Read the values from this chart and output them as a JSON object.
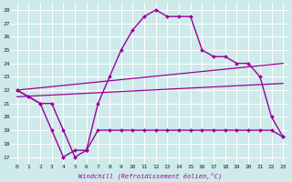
{
  "xlabel": "Windchill (Refroidissement éolien,°C)",
  "background_color": "#ceeaea",
  "grid_color": "#ffffff",
  "line_color": "#990099",
  "xlim": [
    -0.5,
    23.5
  ],
  "ylim": [
    16.5,
    28.5
  ],
  "yticks": [
    17,
    18,
    19,
    20,
    21,
    22,
    23,
    24,
    25,
    26,
    27,
    28
  ],
  "xticks": [
    0,
    1,
    2,
    3,
    4,
    5,
    6,
    7,
    8,
    9,
    10,
    11,
    12,
    13,
    14,
    15,
    16,
    17,
    18,
    19,
    20,
    21,
    22,
    23
  ],
  "series": [
    {
      "x": [
        0,
        1,
        2,
        3,
        4,
        5,
        6,
        7,
        8,
        9,
        10,
        11,
        12,
        13,
        14,
        15,
        16,
        17,
        18,
        19,
        20,
        21,
        22,
        23
      ],
      "y": [
        22.0,
        21.5,
        21.0,
        19.0,
        17.0,
        17.5,
        17.5,
        19.0,
        19.0,
        19.0,
        19.0,
        19.0,
        19.0,
        19.0,
        19.0,
        19.0,
        19.0,
        19.0,
        19.0,
        19.0,
        19.0,
        19.0,
        19.0,
        18.5
      ],
      "marker": "D",
      "markersize": 2,
      "linewidth": 1.0
    },
    {
      "x": [
        0,
        1,
        2,
        3,
        4,
        5,
        6,
        7,
        8,
        9,
        10,
        11,
        12,
        13,
        14,
        15,
        16,
        17,
        18,
        19,
        20,
        21,
        22,
        23
      ],
      "y": [
        22.0,
        21.5,
        21.0,
        21.0,
        19.0,
        17.0,
        17.5,
        21.0,
        23.0,
        25.0,
        26.5,
        27.5,
        28.0,
        27.5,
        27.5,
        27.5,
        25.0,
        24.5,
        24.5,
        24.0,
        24.0,
        23.0,
        20.0,
        18.5
      ],
      "marker": "D",
      "markersize": 2,
      "linewidth": 1.0
    },
    {
      "x": [
        0,
        23
      ],
      "y": [
        21.5,
        22.5
      ],
      "marker": null,
      "markersize": 0,
      "linewidth": 0.9
    },
    {
      "x": [
        0,
        23
      ],
      "y": [
        22.0,
        24.0
      ],
      "marker": null,
      "markersize": 0,
      "linewidth": 0.9
    }
  ]
}
